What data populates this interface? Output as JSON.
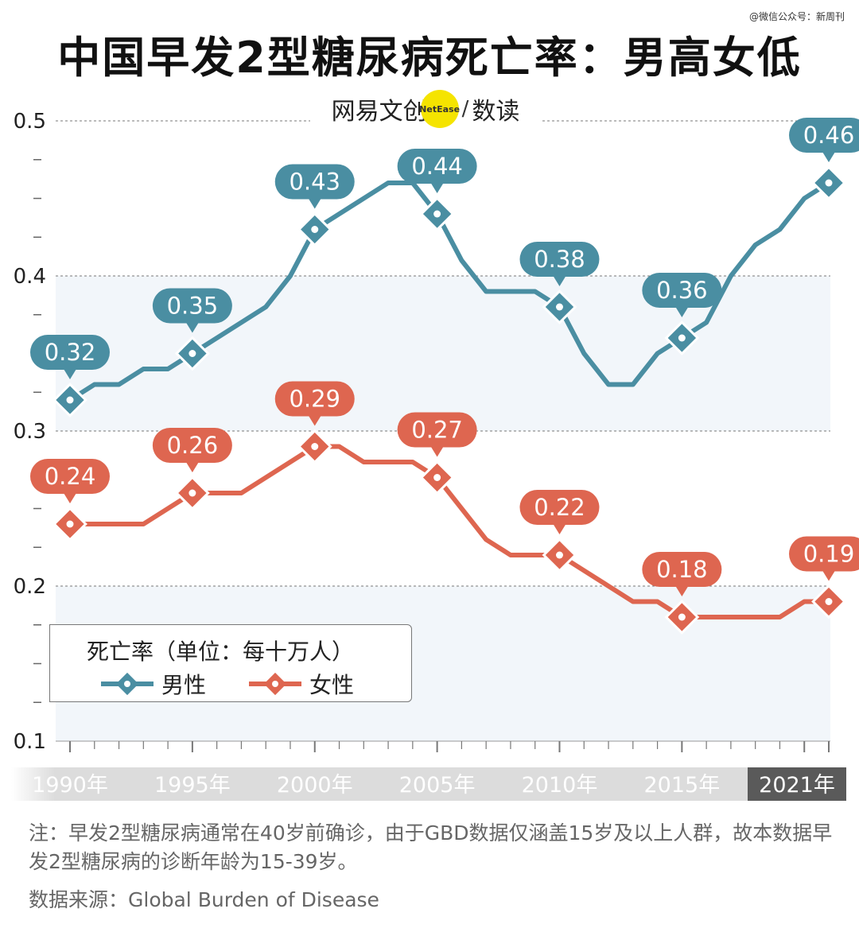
{
  "watermark": "@微信公众号：新周刊",
  "title": "中国早发2型糖尿病死亡率：男高女低",
  "brand": {
    "name": "网易文创",
    "logo_text": "NetEase",
    "sub": "数读"
  },
  "legend": {
    "title": "死亡率（单位：每十万人）",
    "male": "男性",
    "female": "女性"
  },
  "note": "注：早发2型糖尿病通常在40岁前确诊，由于GBD数据仅涵盖15岁及以上人群，故本数据早发2型糖尿病的诊断年龄为15-39岁。",
  "source": "数据来源：Global Burden of Disease",
  "colors": {
    "male": "#4a8ea2",
    "female": "#de6650",
    "band": "#f2f6fa",
    "axis_bar": "#dcdcdc",
    "axis_bar_last": "#5a5a5a"
  },
  "chart_data": {
    "type": "line",
    "ylim": [
      0.1,
      0.5
    ],
    "yticks": [
      "0.1",
      "0.2",
      "0.3",
      "0.4",
      "0.5"
    ],
    "xlabels": [
      "1990年",
      "1995年",
      "2000年",
      "2005年",
      "2010年",
      "2015年",
      "2021年"
    ],
    "x": [
      1990,
      1991,
      1992,
      1993,
      1994,
      1995,
      1996,
      1997,
      1998,
      1999,
      2000,
      2001,
      2002,
      2003,
      2004,
      2005,
      2006,
      2007,
      2008,
      2009,
      2010,
      2011,
      2012,
      2013,
      2014,
      2015,
      2016,
      2017,
      2018,
      2019,
      2020,
      2021
    ],
    "series": [
      {
        "name": "男性",
        "values": [
          0.32,
          0.33,
          0.33,
          0.34,
          0.34,
          0.35,
          0.36,
          0.37,
          0.38,
          0.4,
          0.43,
          0.44,
          0.45,
          0.46,
          0.46,
          0.44,
          0.41,
          0.39,
          0.39,
          0.39,
          0.38,
          0.35,
          0.33,
          0.33,
          0.35,
          0.36,
          0.37,
          0.4,
          0.42,
          0.43,
          0.45,
          0.46
        ],
        "labeled": [
          [
            1990,
            "0.32"
          ],
          [
            1995,
            "0.35"
          ],
          [
            2000,
            "0.43"
          ],
          [
            2005,
            "0.44"
          ],
          [
            2010,
            "0.38"
          ],
          [
            2015,
            "0.36"
          ],
          [
            2021,
            "0.46"
          ]
        ]
      },
      {
        "name": "女性",
        "values": [
          0.24,
          0.24,
          0.24,
          0.24,
          0.25,
          0.26,
          0.26,
          0.26,
          0.27,
          0.28,
          0.29,
          0.29,
          0.28,
          0.28,
          0.28,
          0.27,
          0.25,
          0.23,
          0.22,
          0.22,
          0.22,
          0.21,
          0.2,
          0.19,
          0.19,
          0.18,
          0.18,
          0.18,
          0.18,
          0.18,
          0.19,
          0.19
        ],
        "labeled": [
          [
            1990,
            "0.24"
          ],
          [
            1995,
            "0.26"
          ],
          [
            2000,
            "0.29"
          ],
          [
            2005,
            "0.27"
          ],
          [
            2010,
            "0.22"
          ],
          [
            2015,
            "0.18"
          ],
          [
            2021,
            "0.19"
          ]
        ]
      }
    ]
  }
}
